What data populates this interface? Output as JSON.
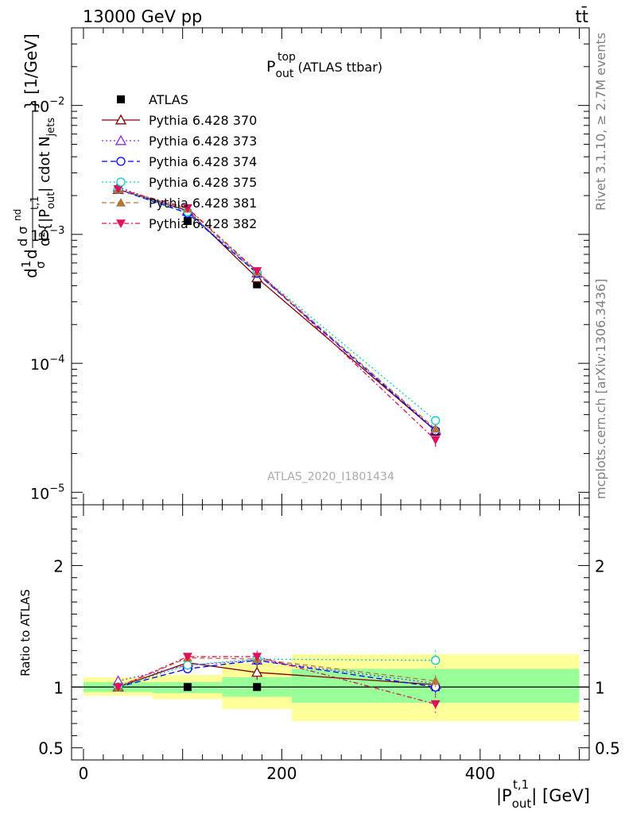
{
  "header": {
    "energy": "13000 GeV pp",
    "process": "tt̄"
  },
  "side_labels": {
    "rivet": "Rivet 3.1.10, ≥ 2.7M events",
    "mcplots": "mcplots.cern.ch [arXiv:1306.3436]"
  },
  "analysis_tag": "ATLAS_2020_I1801434",
  "chart_data": [
    {
      "type": "scatter",
      "panel": "main",
      "title": {
        "main": "P",
        "sup": "top",
        "sub": "out",
        "rest": " (ATLAS ttbar)"
      },
      "ylabel": "d²{|P_out^t,1| cdot N_jets} d σ^nd / dσ [1/GeV]",
      "ylabel_parts": {
        "main": "d²{|P",
        "sup": "t,1",
        "sub": "out",
        "rest": "| cdot N",
        "sub2": "jets",
        "tail": "} [1/GeV]",
        "frac_top": "d σ",
        "frac_top_sup": "nd",
        "prefix": "d",
        "frac_1": "1",
        "frac_sigma": "σ"
      },
      "yscale": "log",
      "ylim": [
        8e-06,
        0.04
      ],
      "xlim": [
        -12,
        510
      ],
      "y_ticks": [
        {
          "value": 0.01,
          "base": "10",
          "exp": "−2"
        },
        {
          "value": 0.001,
          "base": "10",
          "exp": "−3"
        },
        {
          "value": 0.0001,
          "base": "10",
          "exp": "−4"
        },
        {
          "value": 1e-05,
          "base": "10",
          "exp": "−5"
        }
      ],
      "legend_position": "top-left",
      "data": {
        "name": "ATLAS",
        "x": [
          35,
          105,
          175,
          355
        ],
        "xerr": [
          35,
          35,
          35,
          145
        ],
        "y": [
          0.00222,
          0.00127,
          0.00041,
          2.95e-05
        ],
        "yerr": [
          5e-05,
          5e-05,
          1.5e-05,
          1.5e-06
        ]
      },
      "series": [
        {
          "name": "Pythia 6.428 370",
          "color": "#7f0000",
          "dash": "",
          "marker": "triangle-open",
          "y": [
            0.00223,
            0.00153,
            0.00046,
            3e-05
          ]
        },
        {
          "name": "Pythia 6.428 373",
          "color": "#8a2be2",
          "dash": "2,3",
          "marker": "triangle-open",
          "y": [
            0.00233,
            0.0015,
            0.0005,
            3.05e-05
          ]
        },
        {
          "name": "Pythia 6.428 374",
          "color": "#0000ff",
          "dash": "7,4",
          "marker": "circle-open",
          "y": [
            0.00223,
            0.00146,
            0.0005,
            3e-05
          ]
        },
        {
          "name": "Pythia 6.428 375",
          "color": "#00cccc",
          "dash": "2,3",
          "marker": "circle-open",
          "y": [
            0.00223,
            0.0015,
            0.00051,
            3.6e-05
          ]
        },
        {
          "name": "Pythia 6.428 381",
          "color": "#b07838",
          "dash": "6,4",
          "marker": "triangle-filled",
          "y": [
            0.00223,
            0.00158,
            0.00051,
            3.1e-05
          ]
        },
        {
          "name": "Pythia 6.428 382",
          "color": "#e0105a",
          "dash": "6,3,2,3",
          "marker": "triangle-down-filled",
          "y": [
            0.00225,
            0.0016,
            0.00052,
            2.55e-05
          ],
          "yerr_last": 3e-06
        }
      ]
    },
    {
      "type": "scatter",
      "panel": "ratio",
      "ylabel": "Ratio to ATLAS",
      "xlabel_parts": {
        "main": "|P",
        "sup": "t,1",
        "sub": "out",
        "rest": "| [GeV]"
      },
      "ylim": [
        0.4,
        2.5
      ],
      "y_ticks": [
        {
          "value": 0.5,
          "label": "0.5"
        },
        {
          "value": 1,
          "label": "1"
        },
        {
          "value": 2,
          "label": "2"
        }
      ],
      "x_ticks": [
        {
          "value": 0,
          "label": "0"
        },
        {
          "value": 200,
          "label": "200"
        },
        {
          "value": 400,
          "label": "400"
        }
      ],
      "bands": [
        {
          "x0": 0,
          "x1": 70,
          "g_lo": 0.96,
          "g_hi": 1.04,
          "y_lo": 0.93,
          "y_hi": 1.08
        },
        {
          "x0": 70,
          "x1": 140,
          "g_lo": 0.95,
          "g_hi": 1.04,
          "y_lo": 0.9,
          "y_hi": 1.1
        },
        {
          "x0": 140,
          "x1": 210,
          "g_lo": 0.92,
          "g_hi": 1.08,
          "y_lo": 0.82,
          "y_hi": 1.2
        },
        {
          "x0": 210,
          "x1": 500,
          "g_lo": 0.87,
          "g_hi": 1.15,
          "y_lo": 0.72,
          "y_hi": 1.27
        }
      ],
      "series": [
        {
          "name": "Pythia 6.428 370",
          "y": [
            1.0,
            1.2,
            1.12,
            1.02
          ],
          "yerr": [
            0.02,
            0.02,
            0.06,
            0.05
          ]
        },
        {
          "name": "Pythia 6.428 373",
          "y": [
            1.05,
            1.18,
            1.22,
            1.03
          ],
          "yerr": [
            0.02,
            0.02,
            0.05,
            0.05
          ]
        },
        {
          "name": "Pythia 6.428 374",
          "y": [
            1.0,
            1.15,
            1.22,
            1.0
          ],
          "yerr": [
            0.02,
            0.02,
            0.05,
            0.05
          ]
        },
        {
          "name": "Pythia 6.428 375",
          "y": [
            1.0,
            1.18,
            1.23,
            1.22
          ],
          "yerr": [
            0.02,
            0.02,
            0.05,
            0.08
          ]
        },
        {
          "name": "Pythia 6.428 381",
          "y": [
            1.0,
            1.24,
            1.23,
            1.05
          ],
          "yerr": [
            0.02,
            0.02,
            0.05,
            0.05
          ]
        },
        {
          "name": "Pythia 6.428 382",
          "y": [
            1.0,
            1.25,
            1.25,
            0.86
          ],
          "yerr": [
            0.02,
            0.02,
            0.05,
            0.09
          ]
        }
      ]
    }
  ]
}
